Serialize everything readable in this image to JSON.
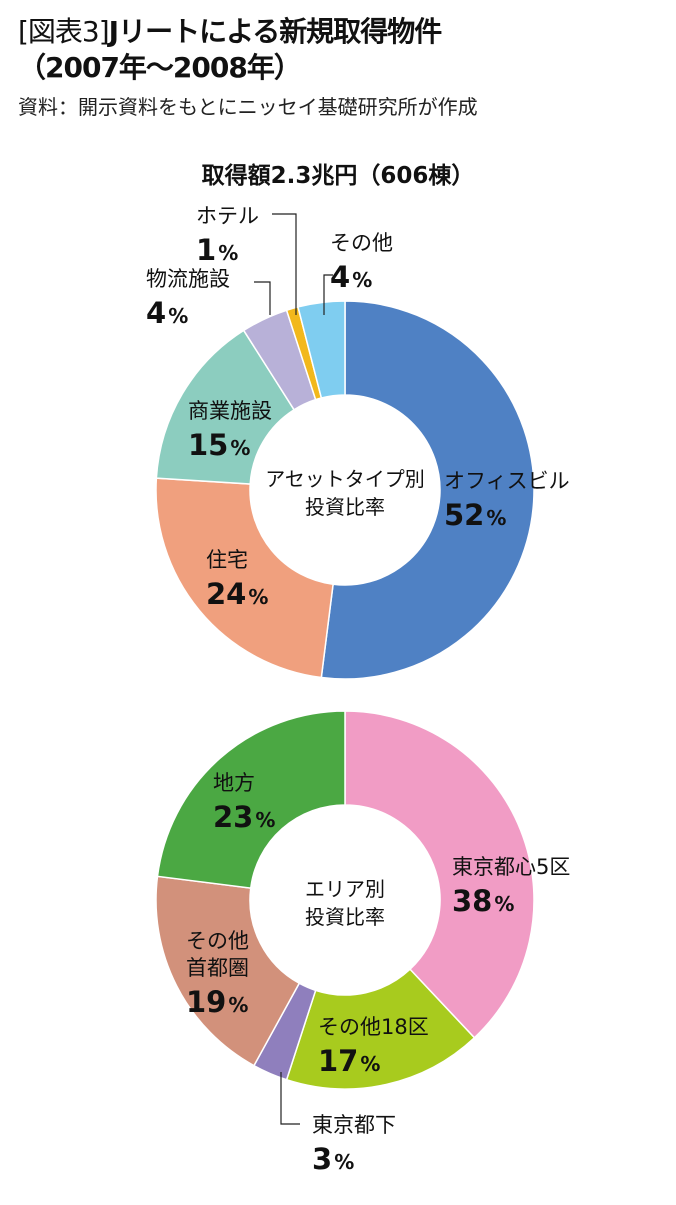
{
  "header": {
    "figure_label": "[図表3]",
    "title": "Jリートによる新規取得物件",
    "period": "（2007年〜2008年）",
    "source": "資料：開示資料をもとにニッセイ基礎研究所が作成"
  },
  "subtitle": "取得額2.3兆円（606棟）",
  "colors": {
    "office": "#4f81c4",
    "residential": "#f0a07e",
    "retail": "#8ccdbf",
    "logistics": "#b8b1d8",
    "hotel": "#f2b81c",
    "other": "#7fcdf0",
    "tokyo5": "#f19cc5",
    "tokyo18": "#a8cb1e",
    "tokyo_shita": "#8f7fbd",
    "metro_other": "#d2917b",
    "regional": "#4ba843"
  },
  "chart_data": [
    {
      "type": "pie",
      "center_label": [
        "アセットタイプ別",
        "投資比率"
      ],
      "unit": "%",
      "slices": [
        {
          "name": "オフィスビル",
          "value": 52
        },
        {
          "name": "住宅",
          "value": 24
        },
        {
          "name": "商業施設",
          "value": 15
        },
        {
          "name": "物流施設",
          "value": 4
        },
        {
          "name": "ホテル",
          "value": 1
        },
        {
          "name": "その他",
          "value": 4
        }
      ]
    },
    {
      "type": "pie",
      "center_label": [
        "エリア別",
        "投資比率"
      ],
      "unit": "%",
      "slices": [
        {
          "name": "東京都心5区",
          "value": 38
        },
        {
          "name": "その他18区",
          "value": 17
        },
        {
          "name": "東京都下",
          "value": 3
        },
        {
          "name": "その他首都圏",
          "value": 19
        },
        {
          "name": "地方",
          "value": 23
        }
      ]
    }
  ]
}
